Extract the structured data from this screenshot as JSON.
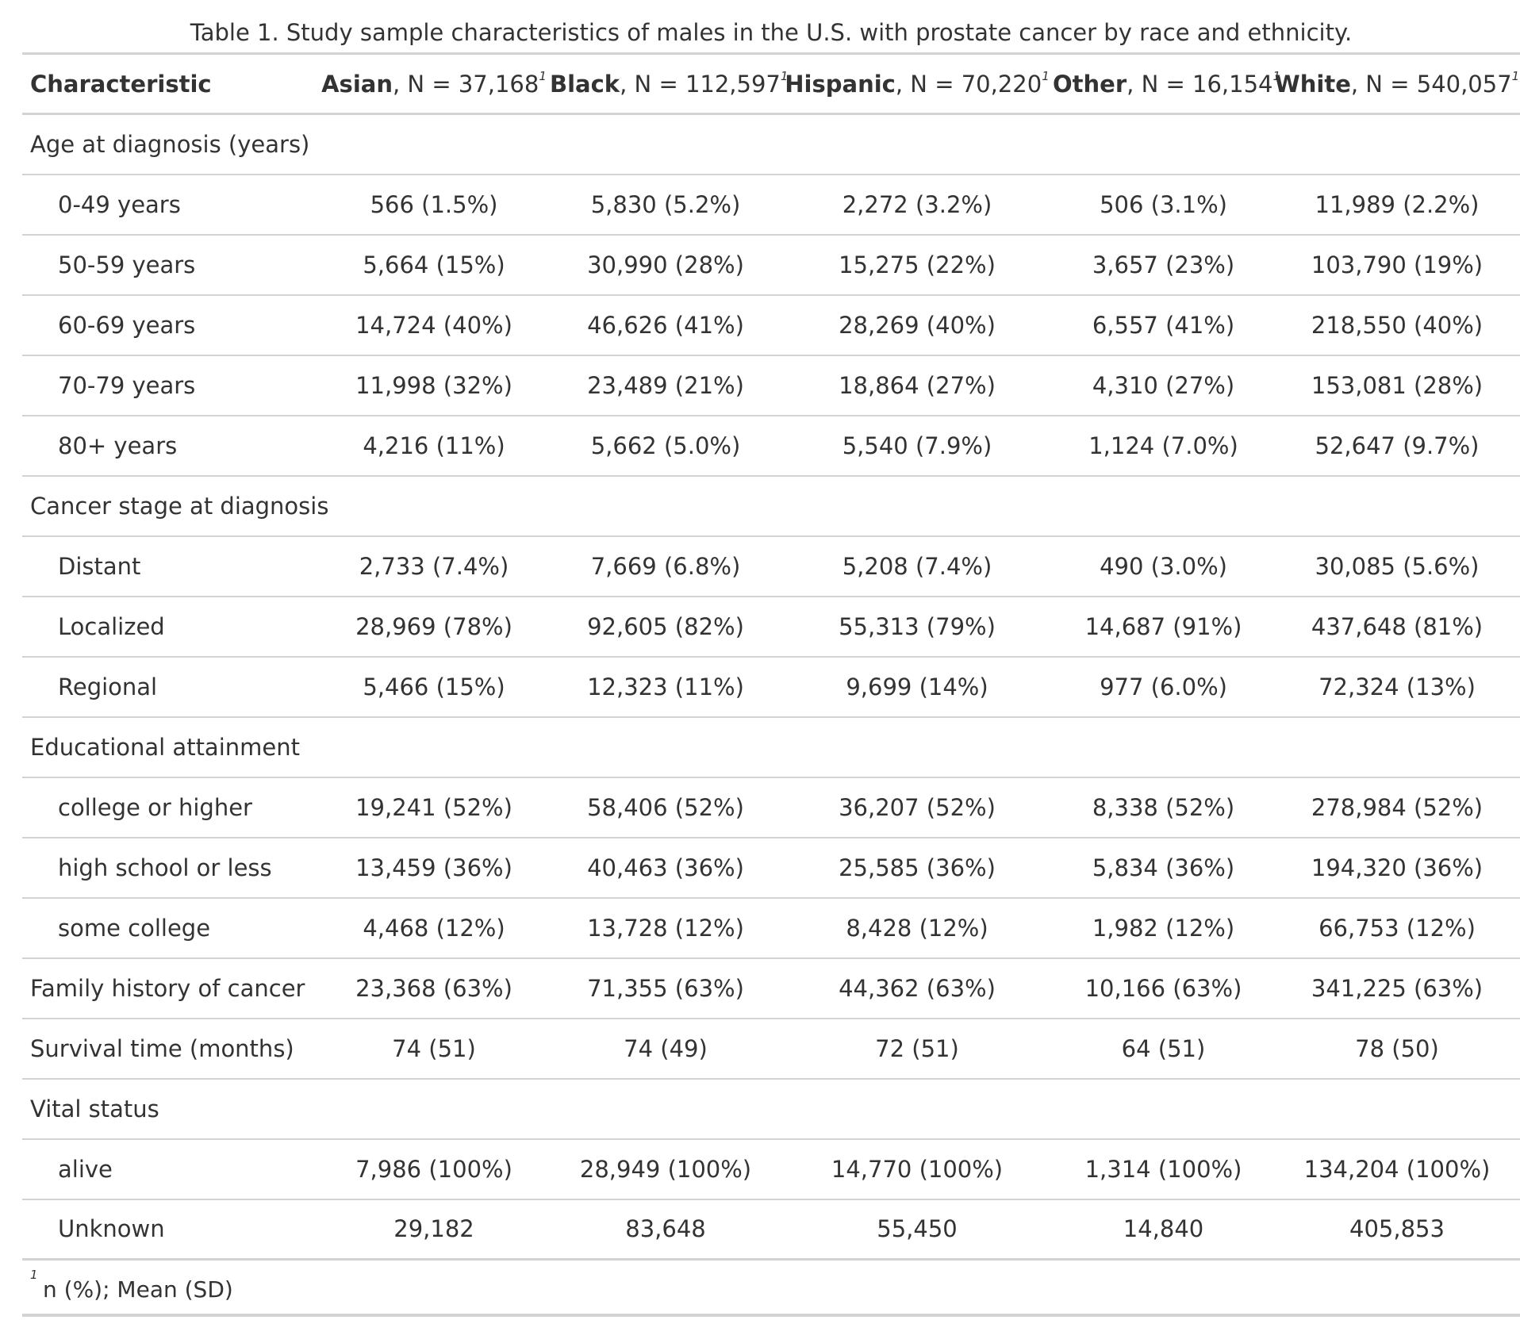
{
  "caption": "Table 1. Study sample characteristics of males in the U.S. with prostate cancer by race and ethnicity.",
  "header": {
    "characteristic": "Characteristic",
    "columns": [
      {
        "group": "Asian",
        "n": ", N = 37,168",
        "mark": "1"
      },
      {
        "group": "Black",
        "n": ", N = 112,597",
        "mark": "1"
      },
      {
        "group": "Hispanic",
        "n": ", N = 70,220",
        "mark": "1"
      },
      {
        "group": "Other",
        "n": ", N = 16,154",
        "mark": "1"
      },
      {
        "group": "White",
        "n": ", N = 540,057",
        "mark": "1"
      }
    ]
  },
  "rows": [
    {
      "label": "Age at diagnosis (years)",
      "values": [
        "",
        "",
        "",
        "",
        ""
      ]
    },
    {
      "label": "0-49 years",
      "values": [
        "566 (1.5%)",
        "5,830 (5.2%)",
        "2,272 (3.2%)",
        "506 (3.1%)",
        "11,989 (2.2%)"
      ]
    },
    {
      "label": "50-59 years",
      "values": [
        "5,664 (15%)",
        "30,990 (28%)",
        "15,275 (22%)",
        "3,657 (23%)",
        "103,790 (19%)"
      ]
    },
    {
      "label": "60-69 years",
      "values": [
        "14,724 (40%)",
        "46,626 (41%)",
        "28,269 (40%)",
        "6,557 (41%)",
        "218,550 (40%)"
      ]
    },
    {
      "label": "70-79 years",
      "values": [
        "11,998 (32%)",
        "23,489 (21%)",
        "18,864 (27%)",
        "4,310 (27%)",
        "153,081 (28%)"
      ]
    },
    {
      "label": "80+ years",
      "values": [
        "4,216 (11%)",
        "5,662 (5.0%)",
        "5,540 (7.9%)",
        "1,124 (7.0%)",
        "52,647 (9.7%)"
      ]
    },
    {
      "label": "Cancer stage at diagnosis",
      "values": [
        "",
        "",
        "",
        "",
        ""
      ]
    },
    {
      "label": "Distant",
      "values": [
        "2,733 (7.4%)",
        "7,669 (6.8%)",
        "5,208 (7.4%)",
        "490 (3.0%)",
        "30,085 (5.6%)"
      ]
    },
    {
      "label": "Localized",
      "values": [
        "28,969 (78%)",
        "92,605 (82%)",
        "55,313 (79%)",
        "14,687 (91%)",
        "437,648 (81%)"
      ]
    },
    {
      "label": "Regional",
      "values": [
        "5,466 (15%)",
        "12,323 (11%)",
        "9,699 (14%)",
        "977 (6.0%)",
        "72,324 (13%)"
      ]
    },
    {
      "label": "Educational attainment",
      "values": [
        "",
        "",
        "",
        "",
        ""
      ]
    },
    {
      "label": "college or higher",
      "values": [
        "19,241 (52%)",
        "58,406 (52%)",
        "36,207 (52%)",
        "8,338 (52%)",
        "278,984 (52%)"
      ]
    },
    {
      "label": "high school or less",
      "values": [
        "13,459 (36%)",
        "40,463 (36%)",
        "25,585 (36%)",
        "5,834 (36%)",
        "194,320 (36%)"
      ]
    },
    {
      "label": "some college",
      "values": [
        "4,468 (12%)",
        "13,728 (12%)",
        "8,428 (12%)",
        "1,982 (12%)",
        "66,753 (12%)"
      ]
    },
    {
      "label": "Family history of cancer",
      "values": [
        "23,368 (63%)",
        "71,355 (63%)",
        "44,362 (63%)",
        "10,166 (63%)",
        "341,225 (63%)"
      ]
    },
    {
      "label": "Survival time (months)",
      "values": [
        "74 (51)",
        "74 (49)",
        "72 (51)",
        "64 (51)",
        "78 (50)"
      ]
    },
    {
      "label": "Vital status",
      "values": [
        "",
        "",
        "",
        "",
        ""
      ]
    },
    {
      "label": "alive",
      "values": [
        "7,986 (100%)",
        "28,949 (100%)",
        "14,770 (100%)",
        "1,314 (100%)",
        "134,204 (100%)"
      ]
    },
    {
      "label": "Unknown",
      "values": [
        "29,182",
        "83,648",
        "55,450",
        "14,840",
        "405,853"
      ]
    }
  ],
  "footnote": {
    "mark": "1",
    "text": "n (%); Mean (SD)"
  }
}
